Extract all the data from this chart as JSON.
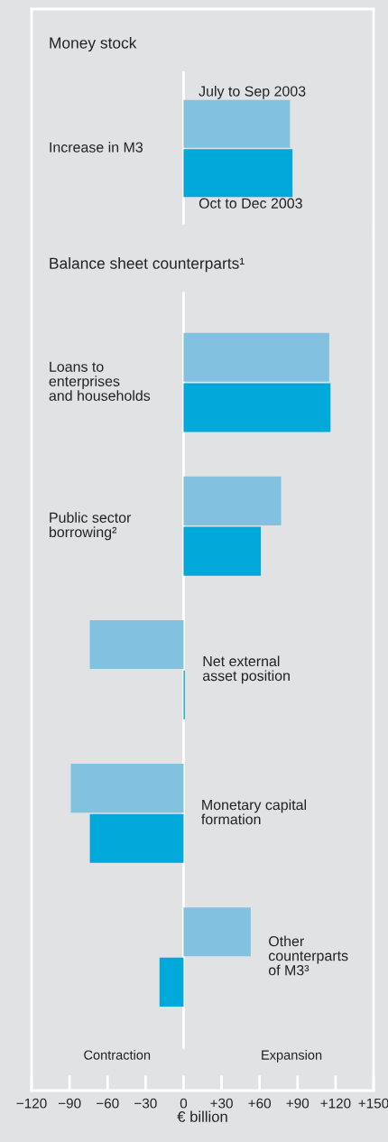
{
  "chart_data": [
    {
      "type": "bar",
      "orientation": "horizontal",
      "title": "Money stock",
      "categories": [
        "Increase in M3"
      ],
      "series": [
        {
          "name": "July to Sep 2003",
          "color": "#82c1e0",
          "values": [
            84
          ]
        },
        {
          "name": "Oct to Dec 2003",
          "color": "#00a9d9",
          "values": [
            86
          ]
        }
      ],
      "xlim": [
        -120,
        150
      ],
      "legend": false
    },
    {
      "type": "bar",
      "orientation": "horizontal",
      "title": "Balance sheet counterparts¹",
      "xlabel": "€ billion",
      "categories": [
        "Loans to\nenterprises\nand households",
        "Public sector\nborrowing²",
        "Net external\nasset position",
        "Monetary capital\nformation",
        "Other\ncounterparts\nof M3³"
      ],
      "series": [
        {
          "color": "#82c1e0",
          "values": [
            115,
            77,
            -74,
            -89,
            53
          ]
        },
        {
          "color": "#00a9d9",
          "values": [
            116,
            61,
            1,
            -74,
            -19
          ]
        }
      ],
      "xlim": [
        -120,
        150
      ],
      "xticks": [
        {
          "value": -120,
          "label": "−120"
        },
        {
          "value": -90,
          "label": "−90"
        },
        {
          "value": -60,
          "label": "−60"
        },
        {
          "value": -30,
          "label": "−30"
        },
        0,
        {
          "value": 30,
          "label": "+30"
        },
        {
          "value": 60,
          "label": "+60"
        },
        {
          "value": 90,
          "label": "+90"
        },
        {
          "value": 120,
          "label": "+120"
        },
        {
          "value": 150,
          "label": "+150"
        }
      ],
      "legend": false,
      "annotations": [
        "Contraction",
        "Expansion"
      ]
    }
  ]
}
